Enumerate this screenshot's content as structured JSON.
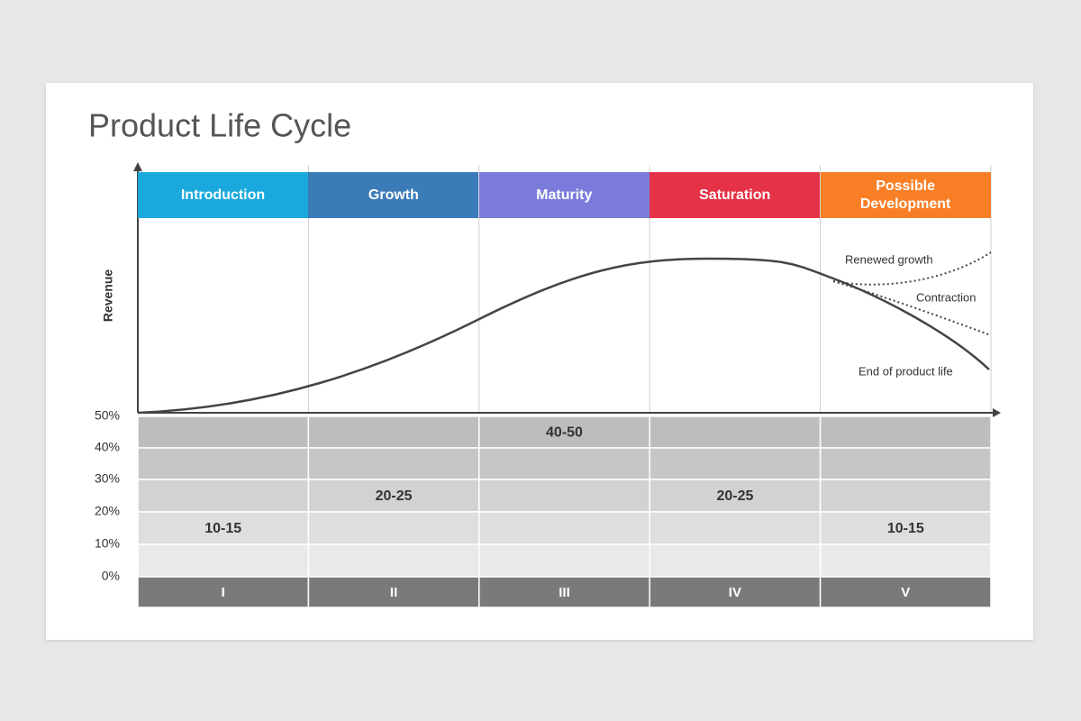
{
  "title": "Product Life Cycle",
  "y_axis_label": "Revenue",
  "stages": [
    {
      "name": "Introduction",
      "color": "#1aa9dd",
      "range": "10-15",
      "numeral": "I"
    },
    {
      "name": "Growth",
      "color": "#3b7bb8",
      "range": "20-25",
      "numeral": "II"
    },
    {
      "name": "Maturity",
      "color": "#7a7bdb",
      "range": "40-50",
      "numeral": "III"
    },
    {
      "name": "Saturation",
      "color": "#e53247",
      "range": "20-25",
      "numeral": "IV"
    },
    {
      "name": "Possible Development",
      "color": "#f97f27",
      "range": "10-15",
      "numeral": "V"
    }
  ],
  "scale_labels": [
    "50%",
    "40%",
    "30%",
    "20%",
    "10%",
    "0%"
  ],
  "curve_labels": [
    "Renewed growth",
    "Contraction",
    "End of product life"
  ]
}
